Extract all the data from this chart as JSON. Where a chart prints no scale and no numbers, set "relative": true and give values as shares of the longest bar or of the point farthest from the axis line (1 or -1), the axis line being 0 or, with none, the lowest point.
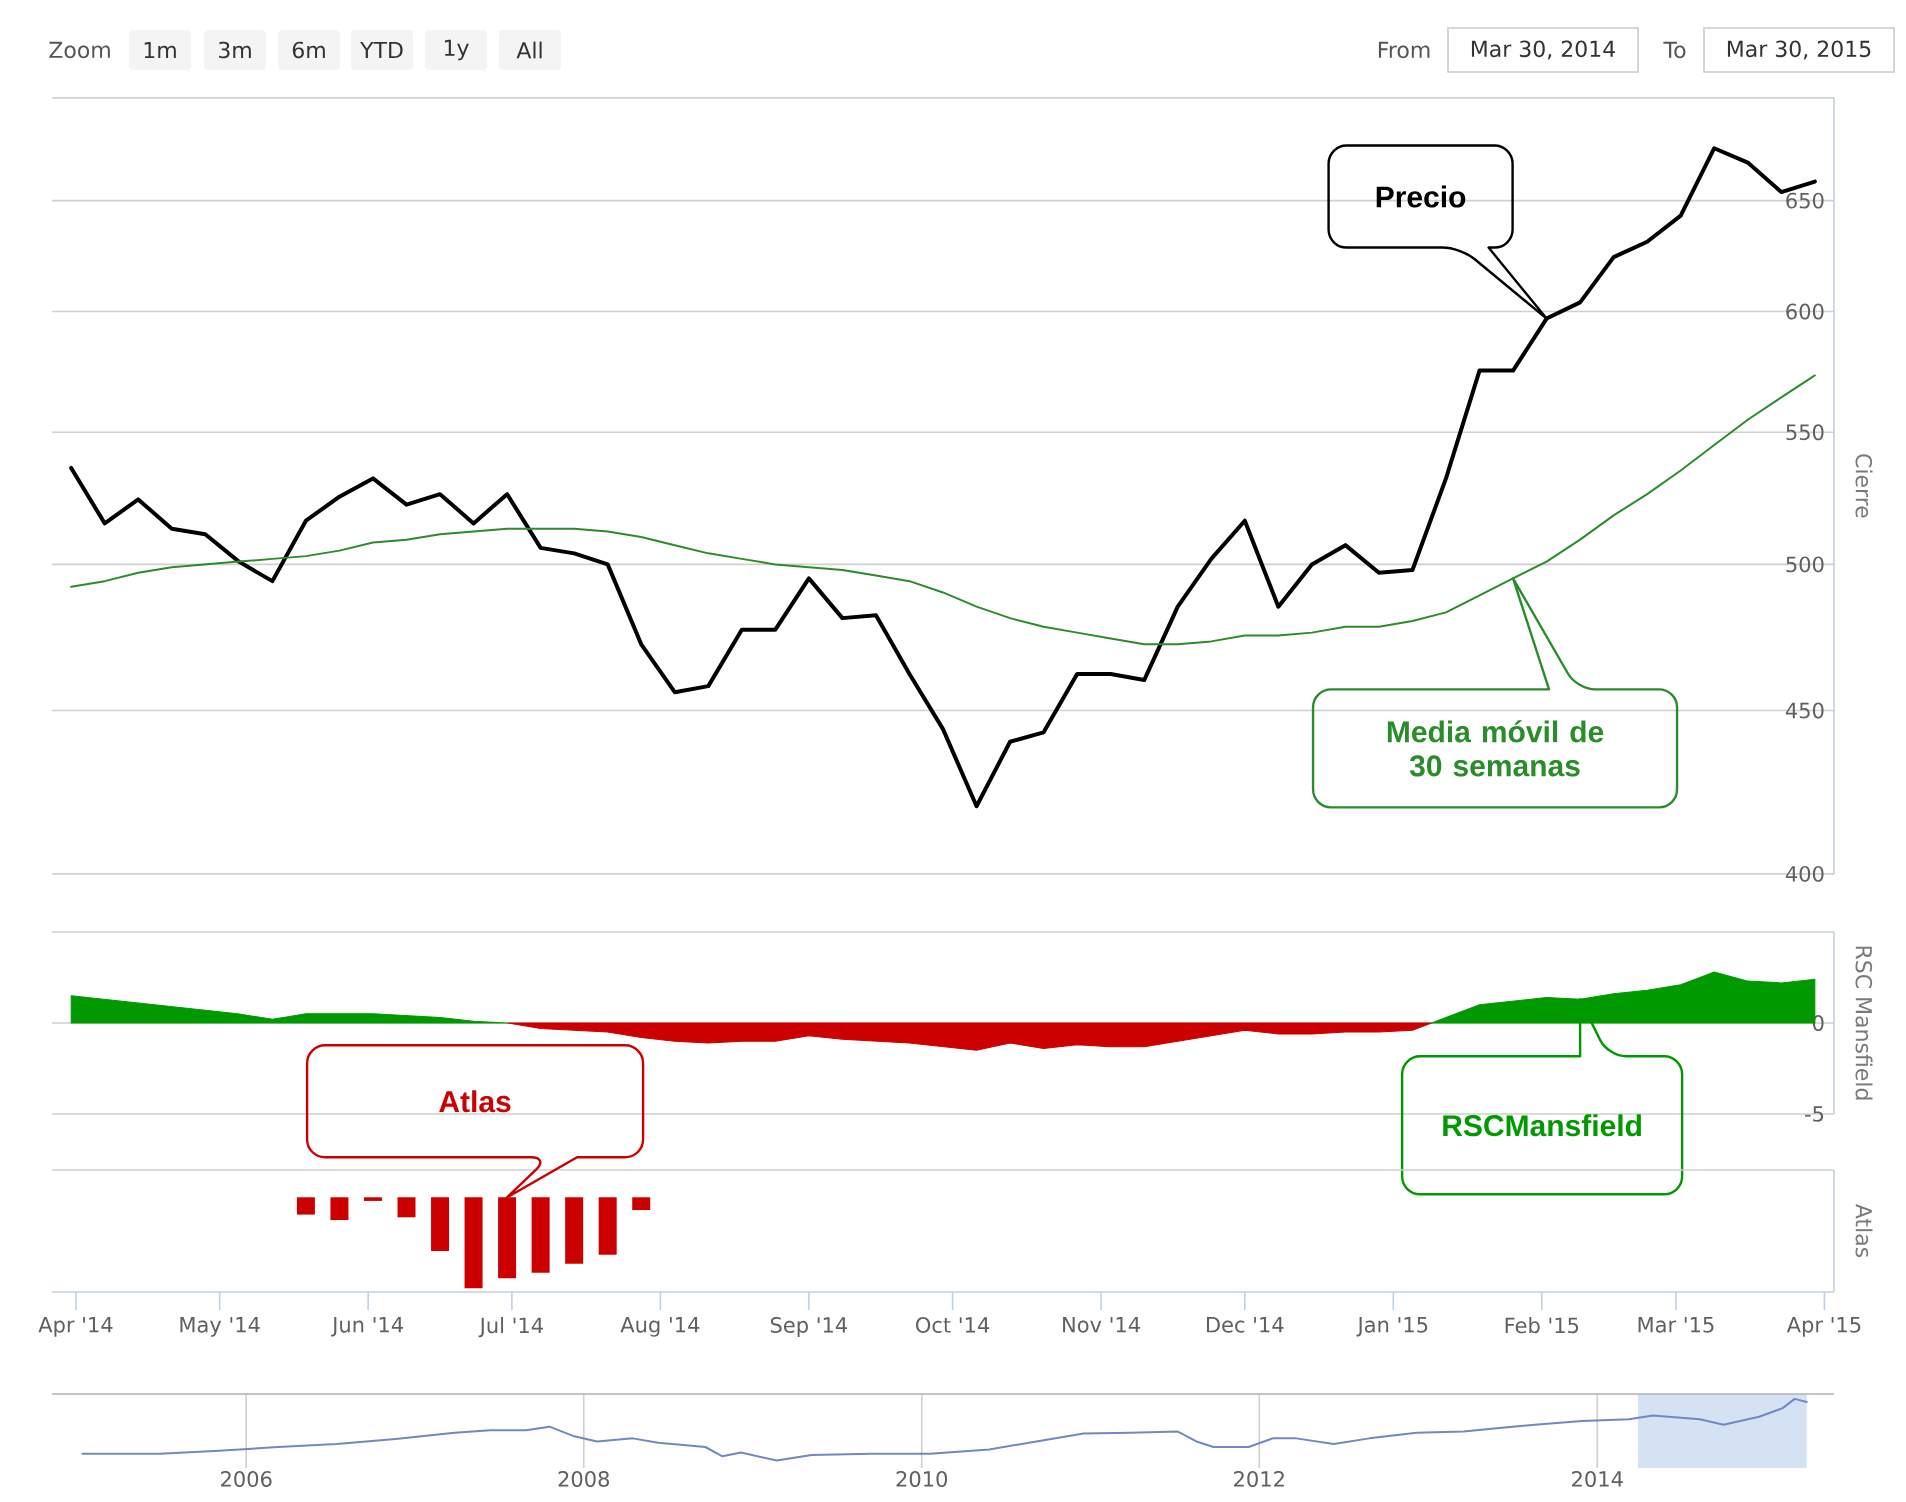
{
  "chart_data": [
    {
      "type": "other",
      "annotations": [
        "Zoom",
        "1m",
        "3m",
        "6m",
        "YTD",
        "1y",
        "All",
        "From",
        "Mar 30, 2014",
        "To",
        "Mar 30, 2015"
      ]
    },
    {
      "type": "line",
      "ylabel": "Cierre",
      "x": [
        "2014-03-31",
        "2014-04-07",
        "2014-04-14",
        "2014-04-21",
        "2014-04-28",
        "2014-05-05",
        "2014-05-12",
        "2014-05-19",
        "2014-05-26",
        "2014-06-02",
        "2014-06-09",
        "2014-06-16",
        "2014-06-23",
        "2014-06-30",
        "2014-07-07",
        "2014-07-14",
        "2014-07-21",
        "2014-07-28",
        "2014-08-04",
        "2014-08-11",
        "2014-08-18",
        "2014-08-25",
        "2014-09-01",
        "2014-09-08",
        "2014-09-15",
        "2014-09-22",
        "2014-09-29",
        "2014-10-06",
        "2014-10-13",
        "2014-10-20",
        "2014-10-27",
        "2014-11-03",
        "2014-11-10",
        "2014-11-17",
        "2014-11-24",
        "2014-12-01",
        "2014-12-08",
        "2014-12-15",
        "2014-12-22",
        "2014-12-29",
        "2015-01-05",
        "2015-01-12",
        "2015-01-19",
        "2015-01-26",
        "2015-02-02",
        "2015-02-09",
        "2015-02-16",
        "2015-02-23",
        "2015-03-02",
        "2015-03-09",
        "2015-03-16",
        "2015-03-23",
        "2015-03-30"
      ],
      "series": [
        {
          "name": "Precio",
          "color": "#000000",
          "values": [
            536,
            515,
            524,
            513,
            511,
            501,
            494,
            516,
            525,
            532,
            522,
            526,
            515,
            526,
            506,
            504,
            500,
            472,
            456,
            458,
            477,
            477,
            495,
            481,
            482,
            462,
            444,
            420,
            440,
            443,
            462,
            462,
            460,
            485,
            502,
            516,
            485,
            500,
            507,
            497,
            498,
            532,
            575,
            575,
            597,
            604,
            624,
            631,
            643,
            675,
            668,
            654,
            659
          ]
        },
        {
          "name": "Media móvil de 30 semanas",
          "color": "#2b8c2b",
          "values": [
            492,
            494,
            497,
            499,
            500,
            501,
            502,
            503,
            505,
            508,
            509,
            511,
            512,
            513,
            513,
            513,
            512,
            510,
            507,
            504,
            502,
            500,
            499,
            498,
            496,
            494,
            490,
            485,
            481,
            478,
            476,
            474,
            472,
            472,
            473,
            475,
            475,
            476,
            478,
            478,
            480,
            483,
            489,
            495,
            501,
            509,
            518,
            526,
            535,
            545,
            555,
            564,
            573
          ]
        }
      ],
      "xlim": [
        "2014-03-27",
        "2015-04-03"
      ],
      "ylim": [
        400,
        700
      ],
      "yticks": [
        400,
        450,
        500,
        550,
        600,
        650,
        {
          "value": 700,
          "label": null
        }
      ],
      "log": true,
      "grid": "y",
      "tick_labels": "y"
    },
    {
      "type": "area",
      "ylabel": "RSC Mansfield",
      "series": [
        {
          "color": "#009900",
          "x": [
            "2014-03-31",
            "2014-04-07",
            "2014-04-14",
            "2014-04-21",
            "2014-04-28",
            "2014-05-05",
            "2014-05-12",
            "2014-05-19",
            "2014-05-26",
            "2014-06-02",
            "2014-06-09",
            "2014-06-16",
            "2014-06-23",
            "2014-06-30"
          ],
          "values": [
            1.5,
            1.3,
            1.1,
            0.9,
            0.7,
            0.5,
            0.2,
            0.5,
            0.5,
            0.5,
            0.4,
            0.3,
            0.1,
            0
          ]
        },
        {
          "color": "#cc0000",
          "x": [
            "2014-06-30",
            "2014-07-07",
            "2014-07-14",
            "2014-07-21",
            "2014-07-28",
            "2014-08-04",
            "2014-08-11",
            "2014-08-18",
            "2014-08-25",
            "2014-09-01",
            "2014-09-08",
            "2014-09-15",
            "2014-09-22",
            "2014-09-29",
            "2014-10-06",
            "2014-10-13",
            "2014-10-20",
            "2014-10-27",
            "2014-11-03",
            "2014-11-10",
            "2014-11-17",
            "2014-11-24",
            "2014-12-01",
            "2014-12-08",
            "2014-12-15",
            "2014-12-22",
            "2014-12-29",
            "2015-01-05",
            "2015-01-09"
          ],
          "values": [
            0,
            -0.3,
            -0.4,
            -0.5,
            -0.8,
            -1.0,
            -1.1,
            -1.0,
            -1.0,
            -0.7,
            -0.9,
            -1.0,
            -1.1,
            -1.3,
            -1.5,
            -1.1,
            -1.4,
            -1.2,
            -1.3,
            -1.3,
            -1.0,
            -0.7,
            -0.4,
            -0.6,
            -0.6,
            -0.5,
            -0.5,
            -0.4,
            0
          ]
        },
        {
          "name": "RSCMansfield",
          "color": "#009900",
          "x": [
            "2015-01-09",
            "2015-01-12",
            "2015-01-19",
            "2015-01-26",
            "2015-02-02",
            "2015-02-09",
            "2015-02-16",
            "2015-02-23",
            "2015-03-02",
            "2015-03-09",
            "2015-03-16",
            "2015-03-23",
            "2015-03-30"
          ],
          "values": [
            0,
            0.3,
            1.0,
            1.2,
            1.4,
            1.3,
            1.6,
            1.8,
            2.1,
            2.8,
            2.3,
            2.2,
            2.4
          ]
        }
      ],
      "xlim": [
        "2014-03-27",
        "2015-04-03"
      ],
      "ylim": [
        -5,
        5
      ],
      "yticks": [
        -5,
        0,
        {
          "value": 5,
          "label": null
        }
      ],
      "grid": "y",
      "tick_labels": "y"
    },
    {
      "type": "bar",
      "ylabel": "Atlas",
      "relative": true,
      "x": [
        "2014-05-19",
        "2014-05-26",
        "2014-06-02",
        "2014-06-09",
        "2014-06-16",
        "2014-06-23",
        "2014-06-30",
        "2014-07-07",
        "2014-07-14",
        "2014-07-21",
        "2014-07-28"
      ],
      "series": [
        {
          "name": "Atlas",
          "color": "#cc0000",
          "values": [
            -0.19,
            -0.25,
            -0.04,
            -0.22,
            -0.59,
            -1,
            -0.89,
            -0.83,
            -0.73,
            -0.63,
            -0.14
          ]
        }
      ],
      "xlim": [
        "2014-03-27",
        "2015-04-03"
      ],
      "xticks": [
        {
          "value": "2014-04-01",
          "label": "Apr '14"
        },
        {
          "value": "2014-05-01",
          "label": "May '14"
        },
        {
          "value": "2014-06-01",
          "label": "Jun '14"
        },
        {
          "value": "2014-07-01",
          "label": "Jul '14"
        },
        {
          "value": "2014-08-01",
          "label": "Aug '14"
        },
        {
          "value": "2014-09-01",
          "label": "Sep '14"
        },
        {
          "value": "2014-10-01",
          "label": "Oct '14"
        },
        {
          "value": "2014-11-01",
          "label": "Nov '14"
        },
        {
          "value": "2014-12-01",
          "label": "Dec '14"
        },
        {
          "value": "2015-01-01",
          "label": "Jan '15"
        },
        {
          "value": "2015-02-01",
          "label": "Feb '15"
        },
        {
          "value": "2015-03-01",
          "label": "Mar '15"
        },
        {
          "value": "2015-04-01",
          "label": "Apr '15"
        }
      ]
    },
    {
      "type": "line",
      "relative": true,
      "color": "#7089c0",
      "x": [
        "2005-01-12",
        "2005-06-28",
        "2005-11-03",
        "2006-03-11",
        "2006-07-16",
        "2006-11-20",
        "2007-03-28",
        "2007-06-13",
        "2007-08-29",
        "2007-10-19",
        "2007-12-09",
        "2008-01-30",
        "2008-04-16",
        "2008-06-10",
        "2008-09-20",
        "2008-10-27",
        "2008-12-06",
        "2009-02-21",
        "2009-05-08",
        "2009-09-13",
        "2010-01-19",
        "2010-05-27",
        "2010-09-06",
        "2010-12-17",
        "2011-03-29",
        "2011-07-09",
        "2011-08-18",
        "2011-09-24",
        "2011-12-09",
        "2012-01-30",
        "2012-03-21",
        "2012-06-10",
        "2012-08-26",
        "2012-12-06",
        "2013-03-18",
        "2013-06-03",
        "2013-08-19",
        "2013-11-29",
        "2014-03-11",
        "2014-05-01",
        "2014-08-11",
        "2014-10-01",
        "2014-12-17",
        "2015-02-06",
        "2015-03-04",
        "2015-03-30"
      ],
      "values": [
        0.11,
        0.11,
        0.16,
        0.22,
        0.27,
        0.35,
        0.45,
        0.49,
        0.49,
        0.55,
        0.4,
        0.31,
        0.36,
        0.29,
        0.22,
        0.07,
        0.13,
        0,
        0.09,
        0.11,
        0.11,
        0.18,
        0.31,
        0.44,
        0.45,
        0.47,
        0.31,
        0.22,
        0.22,
        0.36,
        0.36,
        0.27,
        0.36,
        0.45,
        0.47,
        0.53,
        0.58,
        0.64,
        0.67,
        0.73,
        0.67,
        0.58,
        0.71,
        0.85,
        1,
        0.95
      ],
      "xlim": [
        "2004-11-07",
        "2015-05-28"
      ],
      "xticks": [
        {
          "value": "2006-01-01",
          "label": "2006"
        },
        {
          "value": "2008-01-01",
          "label": "2008"
        },
        {
          "value": "2010-01-01",
          "label": "2010"
        },
        {
          "value": "2012-01-01",
          "label": "2012"
        },
        {
          "value": "2014-01-01",
          "label": "2014"
        }
      ],
      "grid": "x",
      "tick_labels": "x",
      "bands": [
        {
          "axis": "x",
          "from": "2014-03-30",
          "to": "2015-03-30",
          "color": "#d4e2f4"
        }
      ]
    }
  ]
}
